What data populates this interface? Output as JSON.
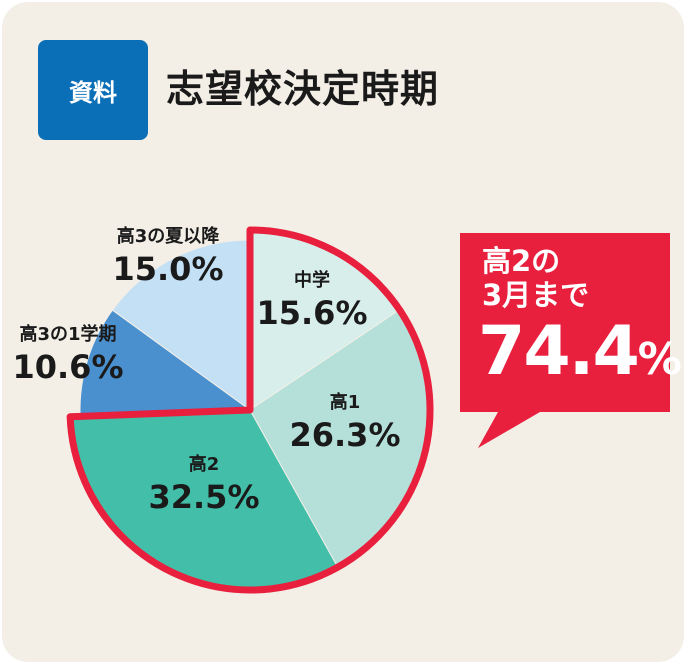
{
  "header": {
    "badge": "資料",
    "title": "志望校決定時期"
  },
  "callout": {
    "line1": "高2の",
    "line2": "3月まで",
    "value_number": "74.4",
    "value_unit": "%"
  },
  "colors": {
    "badge": "#0b6fb8",
    "highlight": "#e8203e",
    "background": "#f3efe7"
  },
  "chart_data": {
    "type": "pie",
    "title": "",
    "unit": "%",
    "slices": [
      {
        "label": "中学",
        "value": 15.6,
        "display": "15.6%",
        "color": "#d8eeea",
        "highlighted": true
      },
      {
        "label": "高1",
        "value": 26.3,
        "display": "26.3%",
        "color": "#b5e0d9",
        "highlighted": true
      },
      {
        "label": "高2",
        "value": 32.5,
        "display": "32.5%",
        "color": "#43bfa9",
        "highlighted": true
      },
      {
        "label": "高3の1学期",
        "value": 10.6,
        "display": "10.6%",
        "color": "#4a90cf",
        "highlighted": false
      },
      {
        "label": "高3の夏以降",
        "value": 15.0,
        "display": "15.0%",
        "color": "#c4e0f4",
        "highlighted": false
      }
    ]
  }
}
